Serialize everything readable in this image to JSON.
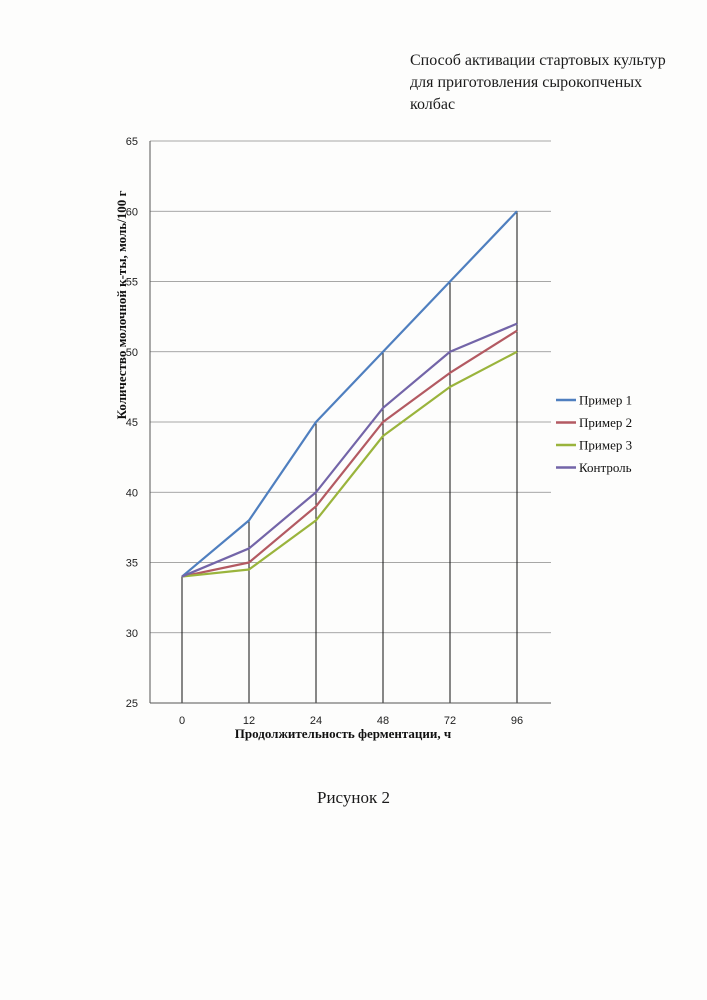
{
  "document": {
    "title_lines": [
      "Способ активации стартовых культур",
      "для приготовления сырокопченых",
      "колбас"
    ],
    "caption": "Рисунок 2"
  },
  "chart_data": {
    "type": "line",
    "categories": [
      "0",
      "12",
      "24",
      "48",
      "72",
      "96"
    ],
    "xlabel": "Продолжительность ферментации, ч",
    "ylabel": "Количество молочной к-ты, моль/100 г",
    "ylim": [
      25,
      65
    ],
    "yticks": [
      25,
      30,
      35,
      40,
      45,
      50,
      55,
      60,
      65
    ],
    "grid": "horizontal",
    "drop_lines": true,
    "legend": "right",
    "series": [
      {
        "name": "Пример 1",
        "color": "#4f7fbf",
        "values": [
          34,
          38,
          45,
          50,
          55,
          60
        ]
      },
      {
        "name": "Пример 2",
        "color": "#b35a62",
        "values": [
          34,
          35,
          39,
          45,
          48.5,
          51.5
        ]
      },
      {
        "name": "Пример 3",
        "color": "#9ab43c",
        "values": [
          34,
          34.5,
          38,
          44,
          47.5,
          50
        ]
      },
      {
        "name": "Контроль",
        "color": "#7365a8",
        "values": [
          34,
          36,
          40,
          46,
          50,
          52
        ]
      }
    ]
  }
}
